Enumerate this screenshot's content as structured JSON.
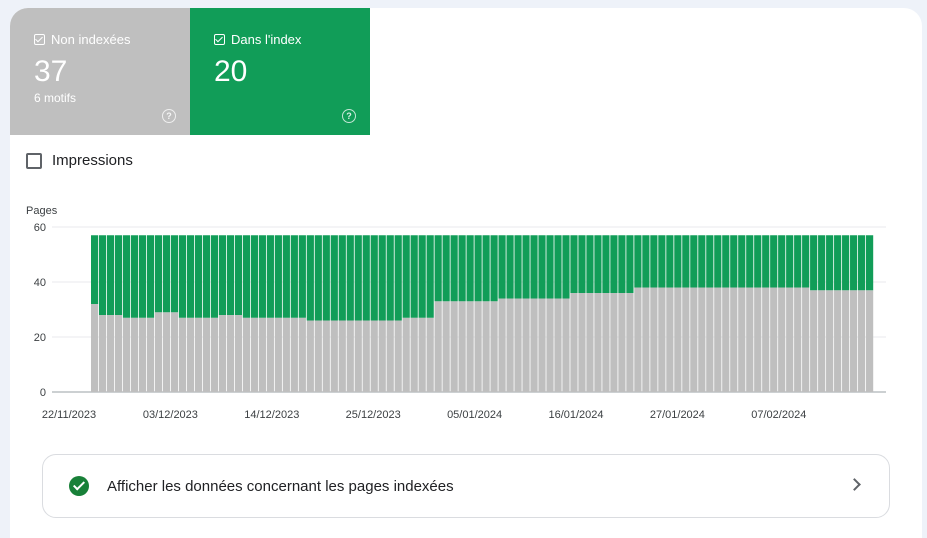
{
  "tiles": {
    "non_indexed": {
      "label": "Non indexées",
      "value": "37",
      "sub": "6 motifs",
      "color": "#bfbfbf"
    },
    "indexed": {
      "label": "Dans l'index",
      "value": "20",
      "color": "#119d58"
    }
  },
  "impressions": {
    "label": "Impressions",
    "checked": false
  },
  "chart_data": {
    "type": "bar",
    "stacked": true,
    "ylabel": "Pages",
    "ylim": [
      0,
      60
    ],
    "yticks": [
      0,
      20,
      40,
      60
    ],
    "xtick_labels": [
      "22/11/2023",
      "03/12/2023",
      "14/12/2023",
      "25/12/2023",
      "05/01/2024",
      "16/01/2024",
      "27/01/2024",
      "07/02/2024"
    ],
    "total_per_day": 57,
    "series": [
      {
        "name": "Non indexées",
        "color": "#bfbfbf",
        "values": [
          32,
          28,
          28,
          28,
          27,
          27,
          27,
          27,
          29,
          29,
          29,
          27,
          27,
          27,
          27,
          27,
          28,
          28,
          28,
          27,
          27,
          27,
          27,
          27,
          27,
          27,
          27,
          26,
          26,
          26,
          26,
          26,
          26,
          26,
          26,
          26,
          26,
          26,
          26,
          27,
          27,
          27,
          27,
          33,
          33,
          33,
          33,
          33,
          33,
          33,
          33,
          34,
          34,
          34,
          34,
          34,
          34,
          34,
          34,
          34,
          36,
          36,
          36,
          36,
          36,
          36,
          36,
          36,
          38,
          38,
          38,
          38,
          38,
          38,
          38,
          38,
          38,
          38,
          38,
          38,
          38,
          38,
          38,
          38,
          38,
          38,
          38,
          38,
          38,
          38,
          37,
          37,
          37,
          37,
          37,
          37,
          37,
          37
        ]
      },
      {
        "name": "Dans l'index",
        "color": "#119d58",
        "values": [
          25,
          29,
          29,
          29,
          30,
          30,
          30,
          30,
          28,
          28,
          28,
          30,
          30,
          30,
          30,
          30,
          29,
          29,
          29,
          30,
          30,
          30,
          30,
          30,
          30,
          30,
          30,
          31,
          31,
          31,
          31,
          31,
          31,
          31,
          31,
          31,
          31,
          31,
          31,
          30,
          30,
          30,
          30,
          24,
          24,
          24,
          24,
          24,
          24,
          24,
          24,
          23,
          23,
          23,
          23,
          23,
          23,
          23,
          23,
          23,
          21,
          21,
          21,
          21,
          21,
          21,
          21,
          21,
          19,
          19,
          19,
          19,
          19,
          19,
          19,
          19,
          19,
          19,
          19,
          19,
          19,
          19,
          19,
          19,
          19,
          19,
          19,
          19,
          19,
          19,
          20,
          20,
          20,
          20,
          20,
          20,
          20,
          20
        ]
      }
    ]
  },
  "link": {
    "label": "Afficher les données concernant les pages indexées"
  }
}
